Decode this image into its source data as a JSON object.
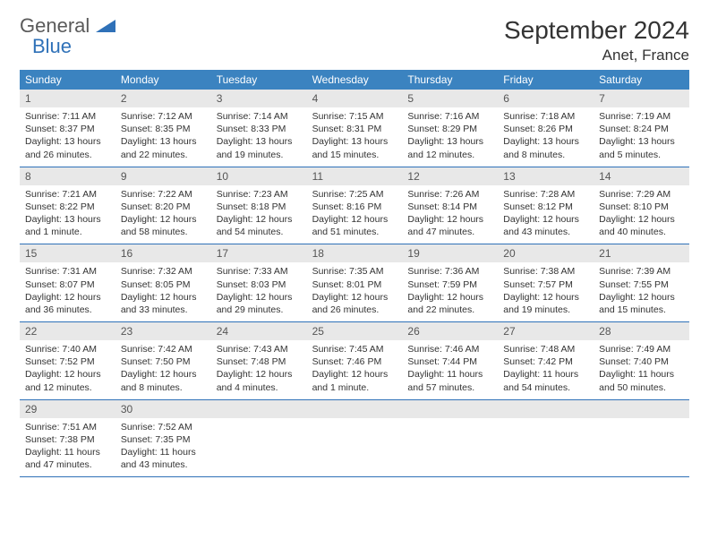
{
  "logo": {
    "text_gray": "General",
    "text_blue": "Blue"
  },
  "title": "September 2024",
  "location": "Anet, France",
  "colors": {
    "header_bg": "#3b83c0",
    "header_text": "#ffffff",
    "daynum_bg": "#e8e8e8",
    "border": "#2f71b8",
    "logo_gray": "#5a5a5a",
    "logo_blue": "#2f71b8"
  },
  "day_names": [
    "Sunday",
    "Monday",
    "Tuesday",
    "Wednesday",
    "Thursday",
    "Friday",
    "Saturday"
  ],
  "weeks": [
    [
      {
        "n": "1",
        "sr": "7:11 AM",
        "ss": "8:37 PM",
        "dl": "13 hours and 26 minutes."
      },
      {
        "n": "2",
        "sr": "7:12 AM",
        "ss": "8:35 PM",
        "dl": "13 hours and 22 minutes."
      },
      {
        "n": "3",
        "sr": "7:14 AM",
        "ss": "8:33 PM",
        "dl": "13 hours and 19 minutes."
      },
      {
        "n": "4",
        "sr": "7:15 AM",
        "ss": "8:31 PM",
        "dl": "13 hours and 15 minutes."
      },
      {
        "n": "5",
        "sr": "7:16 AM",
        "ss": "8:29 PM",
        "dl": "13 hours and 12 minutes."
      },
      {
        "n": "6",
        "sr": "7:18 AM",
        "ss": "8:26 PM",
        "dl": "13 hours and 8 minutes."
      },
      {
        "n": "7",
        "sr": "7:19 AM",
        "ss": "8:24 PM",
        "dl": "13 hours and 5 minutes."
      }
    ],
    [
      {
        "n": "8",
        "sr": "7:21 AM",
        "ss": "8:22 PM",
        "dl": "13 hours and 1 minute."
      },
      {
        "n": "9",
        "sr": "7:22 AM",
        "ss": "8:20 PM",
        "dl": "12 hours and 58 minutes."
      },
      {
        "n": "10",
        "sr": "7:23 AM",
        "ss": "8:18 PM",
        "dl": "12 hours and 54 minutes."
      },
      {
        "n": "11",
        "sr": "7:25 AM",
        "ss": "8:16 PM",
        "dl": "12 hours and 51 minutes."
      },
      {
        "n": "12",
        "sr": "7:26 AM",
        "ss": "8:14 PM",
        "dl": "12 hours and 47 minutes."
      },
      {
        "n": "13",
        "sr": "7:28 AM",
        "ss": "8:12 PM",
        "dl": "12 hours and 43 minutes."
      },
      {
        "n": "14",
        "sr": "7:29 AM",
        "ss": "8:10 PM",
        "dl": "12 hours and 40 minutes."
      }
    ],
    [
      {
        "n": "15",
        "sr": "7:31 AM",
        "ss": "8:07 PM",
        "dl": "12 hours and 36 minutes."
      },
      {
        "n": "16",
        "sr": "7:32 AM",
        "ss": "8:05 PM",
        "dl": "12 hours and 33 minutes."
      },
      {
        "n": "17",
        "sr": "7:33 AM",
        "ss": "8:03 PM",
        "dl": "12 hours and 29 minutes."
      },
      {
        "n": "18",
        "sr": "7:35 AM",
        "ss": "8:01 PM",
        "dl": "12 hours and 26 minutes."
      },
      {
        "n": "19",
        "sr": "7:36 AM",
        "ss": "7:59 PM",
        "dl": "12 hours and 22 minutes."
      },
      {
        "n": "20",
        "sr": "7:38 AM",
        "ss": "7:57 PM",
        "dl": "12 hours and 19 minutes."
      },
      {
        "n": "21",
        "sr": "7:39 AM",
        "ss": "7:55 PM",
        "dl": "12 hours and 15 minutes."
      }
    ],
    [
      {
        "n": "22",
        "sr": "7:40 AM",
        "ss": "7:52 PM",
        "dl": "12 hours and 12 minutes."
      },
      {
        "n": "23",
        "sr": "7:42 AM",
        "ss": "7:50 PM",
        "dl": "12 hours and 8 minutes."
      },
      {
        "n": "24",
        "sr": "7:43 AM",
        "ss": "7:48 PM",
        "dl": "12 hours and 4 minutes."
      },
      {
        "n": "25",
        "sr": "7:45 AM",
        "ss": "7:46 PM",
        "dl": "12 hours and 1 minute."
      },
      {
        "n": "26",
        "sr": "7:46 AM",
        "ss": "7:44 PM",
        "dl": "11 hours and 57 minutes."
      },
      {
        "n": "27",
        "sr": "7:48 AM",
        "ss": "7:42 PM",
        "dl": "11 hours and 54 minutes."
      },
      {
        "n": "28",
        "sr": "7:49 AM",
        "ss": "7:40 PM",
        "dl": "11 hours and 50 minutes."
      }
    ],
    [
      {
        "n": "29",
        "sr": "7:51 AM",
        "ss": "7:38 PM",
        "dl": "11 hours and 47 minutes."
      },
      {
        "n": "30",
        "sr": "7:52 AM",
        "ss": "7:35 PM",
        "dl": "11 hours and 43 minutes."
      },
      null,
      null,
      null,
      null,
      null
    ]
  ],
  "labels": {
    "sunrise": "Sunrise: ",
    "sunset": "Sunset: ",
    "daylight": "Daylight: "
  }
}
